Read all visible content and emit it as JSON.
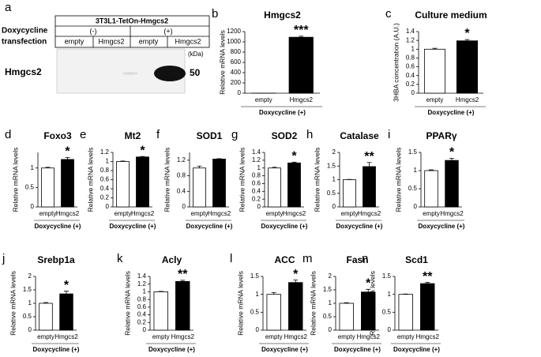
{
  "blot": {
    "panel": "a",
    "construct": "3T3L1-TetOn-Hmgcs2",
    "row1": "Doxycycline",
    "row2": "transfection",
    "dox": [
      "(-)",
      "(+)"
    ],
    "lanes": [
      "empty",
      "Hmgcs2",
      "empty",
      "Hmgcs2"
    ],
    "unit": "(kDa)",
    "protein": "Hmgcs2",
    "marker": "50"
  },
  "chart_data": [
    {
      "type": "bar",
      "panel": "b",
      "title": "Hmgcs2",
      "ylabel": "Relative mRNA levels",
      "xlabel": "Doxycycline (+)",
      "categories": [
        "empty",
        "Hmgcs2"
      ],
      "values": [
        1,
        1090
      ],
      "errors": [
        0.1,
        20
      ],
      "colors": [
        "#ffffff",
        "#000000"
      ],
      "annotation": "***",
      "ylim": [
        0,
        1200
      ],
      "yticks": [
        0,
        200,
        400,
        600,
        800,
        1000,
        1200
      ]
    },
    {
      "type": "bar",
      "panel": "c",
      "title": "Culture medium",
      "ylabel": "3HBA concentration (A.U.)",
      "xlabel": "Doxycycline (+)",
      "categories": [
        "empty",
        "Hmgcs2"
      ],
      "values": [
        1.0,
        1.19
      ],
      "errors": [
        0.02,
        0.03
      ],
      "colors": [
        "#ffffff",
        "#000000"
      ],
      "annotation": "*",
      "ylim": [
        0,
        1.4
      ],
      "yticks": [
        0,
        0.2,
        0.4,
        0.6,
        0.8,
        1,
        1.2,
        1.4
      ]
    },
    {
      "type": "bar",
      "panel": "d",
      "title": "Foxo3",
      "ylabel": "Relative mRNA levels",
      "xlabel": "Doxycycline (+)",
      "categories": [
        "empty",
        "Hmgcs2"
      ],
      "values": [
        1.0,
        1.22
      ],
      "errors": [
        0.02,
        0.05
      ],
      "colors": [
        "#ffffff",
        "#000000"
      ],
      "annotation": "*",
      "ylim": [
        0,
        1.4
      ],
      "yticks": [
        0,
        0.5,
        1
      ]
    },
    {
      "type": "bar",
      "panel": "e",
      "title": "Mt2",
      "ylabel": "Relative mRNA levels",
      "xlabel": "Doxycycline (+)",
      "categories": [
        "empty",
        "Hmgcs2"
      ],
      "values": [
        1.0,
        1.1
      ],
      "errors": [
        0.01,
        0.01
      ],
      "colors": [
        "#ffffff",
        "#000000"
      ],
      "annotation": "*",
      "ylim": [
        0,
        1.2
      ],
      "yticks": [
        0,
        0.2,
        0.4,
        0.6,
        0.8,
        1,
        1.2
      ]
    },
    {
      "type": "bar",
      "panel": "f",
      "title": "SOD1",
      "ylabel": "Relative mRNA levels",
      "xlabel": "Doxycycline (+)",
      "categories": [
        "empty",
        "Hmgcs2"
      ],
      "values": [
        1.0,
        1.23
      ],
      "errors": [
        0.05,
        0.01
      ],
      "colors": [
        "#ffffff",
        "#000000"
      ],
      "ylim": [
        0,
        1.4
      ],
      "yticks": [
        0,
        0.4,
        0.8,
        1.2
      ]
    },
    {
      "type": "bar",
      "panel": "g",
      "title": "SOD2",
      "ylabel": "Relative mRNA levels",
      "xlabel": "Doxycycline (+)",
      "categories": [
        "empty",
        "Hmgcs2"
      ],
      "values": [
        1.0,
        1.13
      ],
      "errors": [
        0.02,
        0.02
      ],
      "colors": [
        "#ffffff",
        "#000000"
      ],
      "annotation": "*",
      "ylim": [
        0,
        1.4
      ],
      "yticks": [
        0,
        0.2,
        0.4,
        0.6,
        0.8,
        1,
        1.2,
        1.4
      ]
    },
    {
      "type": "bar",
      "panel": "h",
      "title": "Catalase",
      "ylabel": "Relative mRNA levels",
      "xlabel": "Doxycycline (+)",
      "categories": [
        "empty",
        "Hmgcs2"
      ],
      "values": [
        1.0,
        1.48
      ],
      "errors": [
        0.01,
        0.15
      ],
      "colors": [
        "#ffffff",
        "#000000"
      ],
      "annotation": "**",
      "ylim": [
        0,
        2
      ],
      "yticks": [
        0,
        0.5,
        1,
        1.5,
        2
      ]
    },
    {
      "type": "bar",
      "panel": "i",
      "title": "PPARγ",
      "ylabel": "Relative mRNA levels",
      "xlabel": "Doxycycline (+)",
      "categories": [
        "empty",
        "Hmgcs2"
      ],
      "values": [
        1.0,
        1.28
      ],
      "errors": [
        0.02,
        0.06
      ],
      "colors": [
        "#ffffff",
        "#000000"
      ],
      "annotation": "*",
      "ylim": [
        0,
        1.5
      ],
      "yticks": [
        0,
        0.5,
        1,
        1.5
      ]
    },
    {
      "type": "bar",
      "panel": "j",
      "title": "Srebp1a",
      "ylabel": "Relative mRNA levels",
      "xlabel": "Doxycycline (+)",
      "categories": [
        "empty",
        "Hmgcs2"
      ],
      "values": [
        1.0,
        1.35
      ],
      "errors": [
        0.03,
        0.1
      ],
      "colors": [
        "#ffffff",
        "#000000"
      ],
      "annotation": "*",
      "ylim": [
        0,
        2
      ],
      "yticks": [
        0,
        0.5,
        1,
        1.5,
        2
      ]
    },
    {
      "type": "bar",
      "panel": "k",
      "title": "Acly",
      "ylabel": "Relative mRNA levels",
      "xlabel": "Doxycycline (+)",
      "categories": [
        "empty",
        "Hmgcs2"
      ],
      "values": [
        1.0,
        1.27
      ],
      "errors": [
        0.01,
        0.03
      ],
      "colors": [
        "#ffffff",
        "#000000"
      ],
      "annotation": "**",
      "ylim": [
        0,
        1.4
      ],
      "yticks": [
        0,
        0.2,
        0.4,
        0.6,
        0.8,
        1,
        1.2,
        1.4
      ]
    },
    {
      "type": "bar",
      "panel": "l",
      "title": "ACC",
      "ylabel": "Relative mRNA levels",
      "xlabel": "Doxycycline (+)",
      "categories": [
        "empty",
        "Hmgcs2"
      ],
      "values": [
        1.0,
        1.33
      ],
      "errors": [
        0.05,
        0.07
      ],
      "colors": [
        "#ffffff",
        "#000000"
      ],
      "annotation": "*",
      "ylim": [
        0,
        1.5
      ],
      "yticks": [
        0,
        0.5,
        1,
        1.5
      ]
    },
    {
      "type": "bar",
      "panel": "m",
      "title": "Fasn",
      "ylabel": "Relative mRNA levels",
      "xlabel": "Doxycycline (+)",
      "categories": [
        "empty",
        "Hmgcs2"
      ],
      "values": [
        1.0,
        1.42
      ],
      "errors": [
        0.02,
        0.1
      ],
      "colors": [
        "#ffffff",
        "#000000"
      ],
      "annotation": "*",
      "ylim": [
        0,
        2
      ],
      "yticks": [
        0,
        0.5,
        1,
        1.5,
        2
      ]
    },
    {
      "type": "bar",
      "panel": "n",
      "title": "Scd1",
      "ylabel": "Relative mRNA levels",
      "xlabel": "Doxycycline (+)",
      "categories": [
        "empty",
        "Hmgcs2"
      ],
      "values": [
        1.0,
        1.3
      ],
      "errors": [
        0.01,
        0.03
      ],
      "colors": [
        "#ffffff",
        "#000000"
      ],
      "annotation": "**",
      "ylim": [
        0,
        1.5
      ],
      "yticks": [
        0,
        0.5,
        1,
        1.5
      ]
    }
  ]
}
